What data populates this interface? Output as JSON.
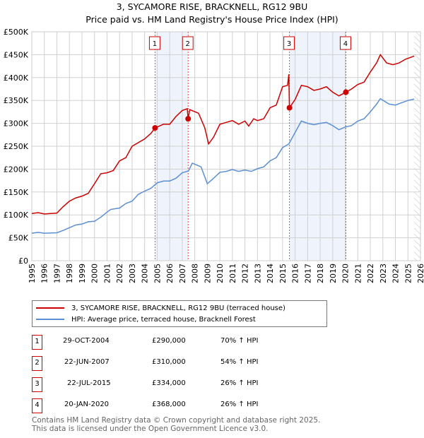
{
  "chart_data": {
    "type": "line",
    "title": "3, SYCAMORE RISE, BRACKNELL, RG12 9BU",
    "subtitle": "Price paid vs. HM Land Registry's House Price Index (HPI)",
    "xlim": [
      1995,
      2026
    ],
    "ylim": [
      0,
      500000
    ],
    "x_ticks": [
      "1995",
      "1996",
      "1997",
      "1998",
      "1999",
      "2000",
      "2001",
      "2002",
      "2003",
      "2004",
      "2005",
      "2006",
      "2007",
      "2008",
      "2009",
      "2010",
      "2011",
      "2012",
      "2013",
      "2014",
      "2015",
      "2016",
      "2017",
      "2018",
      "2019",
      "2020",
      "2021",
      "2022",
      "2023",
      "2024",
      "2025",
      "2026"
    ],
    "y_ticks": [
      {
        "v": 0,
        "label": "£0"
      },
      {
        "v": 50000,
        "label": "£50K"
      },
      {
        "v": 100000,
        "label": "£100K"
      },
      {
        "v": 150000,
        "label": "£150K"
      },
      {
        "v": 200000,
        "label": "£200K"
      },
      {
        "v": 250000,
        "label": "£250K"
      },
      {
        "v": 300000,
        "label": "£300K"
      },
      {
        "v": 350000,
        "label": "£350K"
      },
      {
        "v": 400000,
        "label": "£400K"
      },
      {
        "v": 450000,
        "label": "£450K"
      },
      {
        "v": 500000,
        "label": "£500K"
      }
    ],
    "grid": true,
    "hatch_from": 2025.5,
    "shaded_ranges": [
      [
        2004.83,
        2007.47
      ],
      [
        2015.55,
        2020.05
      ]
    ],
    "series": [
      {
        "name": "3, SYCAMORE RISE, BRACKNELL, RG12 9BU (terraced house)",
        "color": "#cc0000",
        "unit": "K",
        "points": [
          [
            1995,
            103
          ],
          [
            1995.5,
            105
          ],
          [
            1996,
            102
          ],
          [
            1997,
            104
          ],
          [
            1997.5,
            118
          ],
          [
            1998,
            130
          ],
          [
            1998.5,
            137
          ],
          [
            1999,
            141
          ],
          [
            1999.5,
            147
          ],
          [
            2000,
            168
          ],
          [
            2000.5,
            190
          ],
          [
            2001,
            192
          ],
          [
            2001.5,
            197
          ],
          [
            2002,
            218
          ],
          [
            2002.5,
            225
          ],
          [
            2003,
            250
          ],
          [
            2003.5,
            258
          ],
          [
            2004,
            266
          ],
          [
            2004.5,
            278
          ],
          [
            2004.83,
            290
          ],
          [
            2005.5,
            298
          ],
          [
            2006,
            298
          ],
          [
            2006.5,
            315
          ],
          [
            2007,
            328
          ],
          [
            2007.4,
            332
          ],
          [
            2007.47,
            310
          ],
          [
            2007.6,
            330
          ],
          [
            2008.3,
            322
          ],
          [
            2008.8,
            290
          ],
          [
            2009.1,
            255
          ],
          [
            2009.5,
            270
          ],
          [
            2010,
            298
          ],
          [
            2010.5,
            302
          ],
          [
            2011,
            306
          ],
          [
            2011.5,
            298
          ],
          [
            2012,
            305
          ],
          [
            2012.3,
            294
          ],
          [
            2012.7,
            310
          ],
          [
            2013,
            306
          ],
          [
            2013.5,
            310
          ],
          [
            2014,
            334
          ],
          [
            2014.5,
            340
          ],
          [
            2015,
            380
          ],
          [
            2015.4,
            383
          ],
          [
            2015.5,
            407
          ],
          [
            2015.55,
            334
          ],
          [
            2016,
            352
          ],
          [
            2016.5,
            383
          ],
          [
            2017,
            380
          ],
          [
            2017.5,
            372
          ],
          [
            2018,
            375
          ],
          [
            2018.5,
            380
          ],
          [
            2019,
            368
          ],
          [
            2019.5,
            360
          ],
          [
            2020.05,
            368
          ],
          [
            2020.5,
            375
          ],
          [
            2021,
            385
          ],
          [
            2021.5,
            390
          ],
          [
            2022,
            412
          ],
          [
            2022.5,
            432
          ],
          [
            2022.8,
            450
          ],
          [
            2023.3,
            432
          ],
          [
            2023.8,
            428
          ],
          [
            2024.3,
            432
          ],
          [
            2024.8,
            440
          ],
          [
            2025.5,
            447
          ]
        ]
      },
      {
        "name": "HPI: Average price, terraced house, Bracknell Forest",
        "color": "#5b8fd4",
        "unit": "K",
        "points": [
          [
            1995,
            60
          ],
          [
            1995.5,
            62
          ],
          [
            1996,
            60
          ],
          [
            1997,
            61
          ],
          [
            1997.5,
            66
          ],
          [
            1998,
            72
          ],
          [
            1998.5,
            78
          ],
          [
            1999,
            80
          ],
          [
            1999.5,
            85
          ],
          [
            2000,
            86
          ],
          [
            2000.5,
            95
          ],
          [
            2001,
            106
          ],
          [
            2001.3,
            112
          ],
          [
            2002,
            115
          ],
          [
            2002.5,
            125
          ],
          [
            2003,
            130
          ],
          [
            2003.5,
            145
          ],
          [
            2004,
            152
          ],
          [
            2004.5,
            158
          ],
          [
            2005,
            170
          ],
          [
            2005.5,
            174
          ],
          [
            2006,
            174
          ],
          [
            2006.5,
            180
          ],
          [
            2007,
            192
          ],
          [
            2007.5,
            196
          ],
          [
            2007.8,
            213
          ],
          [
            2008.5,
            205
          ],
          [
            2009,
            168
          ],
          [
            2009.5,
            180
          ],
          [
            2010,
            193
          ],
          [
            2010.5,
            195
          ],
          [
            2011,
            199
          ],
          [
            2011.5,
            195
          ],
          [
            2012,
            198
          ],
          [
            2012.5,
            195
          ],
          [
            2013,
            201
          ],
          [
            2013.5,
            205
          ],
          [
            2014,
            218
          ],
          [
            2014.5,
            225
          ],
          [
            2015,
            247
          ],
          [
            2015.5,
            255
          ],
          [
            2016,
            280
          ],
          [
            2016.5,
            305
          ],
          [
            2017,
            300
          ],
          [
            2017.5,
            297
          ],
          [
            2018,
            300
          ],
          [
            2018.5,
            302
          ],
          [
            2019,
            295
          ],
          [
            2019.5,
            286
          ],
          [
            2020,
            292
          ],
          [
            2020.5,
            295
          ],
          [
            2021,
            305
          ],
          [
            2021.5,
            310
          ],
          [
            2022,
            325
          ],
          [
            2022.5,
            342
          ],
          [
            2022.8,
            354
          ],
          [
            2023.5,
            342
          ],
          [
            2024,
            340
          ],
          [
            2024.5,
            345
          ],
          [
            2025,
            350
          ],
          [
            2025.5,
            353
          ]
        ]
      }
    ],
    "sales": [
      {
        "id": "1",
        "x": 2004.83,
        "value": 290000,
        "date": "29-OCT-2004",
        "price": "£290,000",
        "hpi": "70% ↑ HPI"
      },
      {
        "id": "2",
        "x": 2007.47,
        "value": 310000,
        "date": "22-JUN-2007",
        "price": "£310,000",
        "hpi": "54% ↑ HPI"
      },
      {
        "id": "3",
        "x": 2015.55,
        "value": 334000,
        "date": "22-JUL-2015",
        "price": "£334,000",
        "hpi": "26% ↑ HPI"
      },
      {
        "id": "4",
        "x": 2020.05,
        "value": 368000,
        "date": "20-JAN-2020",
        "price": "£368,000",
        "hpi": "26% ↑ HPI"
      }
    ]
  },
  "footer": {
    "line1": "Contains HM Land Registry data © Crown copyright and database right 2025.",
    "line2": "This data is licensed under the Open Government Licence v3.0."
  }
}
